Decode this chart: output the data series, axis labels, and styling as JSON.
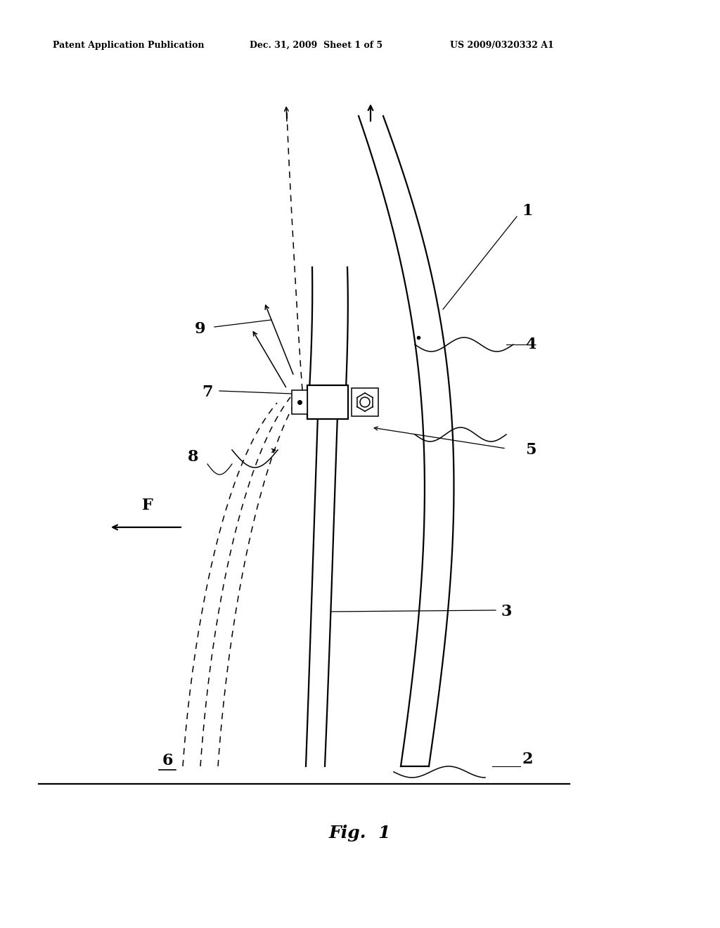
{
  "bg_color": "#ffffff",
  "title_left": "Patent Application Publication",
  "title_center": "Dec. 31, 2009  Sheet 1 of 5",
  "title_right": "US 2009/0320332 A1",
  "fig_label": "Fig. 1",
  "lw": 1.6,
  "lw_thin": 1.1
}
